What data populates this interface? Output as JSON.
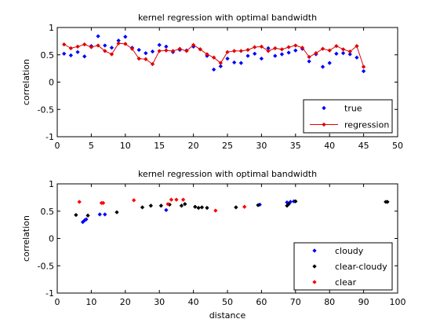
{
  "chart_data": [
    {
      "type": "scatter",
      "title": "kernel regression with optimal bandwidth",
      "xlabel": "",
      "ylabel": "correlation",
      "xlim": [
        0,
        50
      ],
      "ylim": [
        -1,
        1
      ],
      "xticks": [
        0,
        5,
        10,
        15,
        20,
        25,
        30,
        35,
        40,
        45,
        50
      ],
      "yticks": [
        -1,
        -0.5,
        0,
        0.5,
        1
      ],
      "grid": false,
      "legend_position": "bottom-right",
      "series": [
        {
          "name": "true",
          "kind": "points",
          "color": "#0000ff",
          "x": [
            1,
            2,
            3,
            4,
            5,
            6,
            7,
            8,
            9,
            10,
            11,
            12,
            13,
            14,
            15,
            16,
            17,
            18,
            19,
            20,
            21,
            22,
            23,
            24,
            25,
            26,
            27,
            28,
            29,
            30,
            31,
            32,
            33,
            34,
            35,
            36,
            37,
            38,
            39,
            40,
            41,
            42,
            43,
            44,
            45
          ],
          "y": [
            0.52,
            0.49,
            0.55,
            0.47,
            0.66,
            0.84,
            0.67,
            0.63,
            0.76,
            0.83,
            0.63,
            0.59,
            0.53,
            0.56,
            0.68,
            0.65,
            0.55,
            0.59,
            0.58,
            0.65,
            0.6,
            0.48,
            0.23,
            0.29,
            0.43,
            0.36,
            0.35,
            0.48,
            0.52,
            0.43,
            0.62,
            0.48,
            0.51,
            0.54,
            0.58,
            0.61,
            0.38,
            0.51,
            0.28,
            0.35,
            0.52,
            0.53,
            0.51,
            0.45,
            0.2
          ]
        },
        {
          "name": "regression",
          "kind": "line-markers",
          "color": "#e00000",
          "x": [
            1,
            2,
            3,
            4,
            5,
            6,
            7,
            8,
            9,
            10,
            11,
            12,
            13,
            14,
            15,
            16,
            17,
            18,
            19,
            20,
            21,
            22,
            23,
            24,
            25,
            26,
            27,
            28,
            29,
            30,
            31,
            32,
            33,
            34,
            35,
            36,
            37,
            38,
            39,
            40,
            41,
            42,
            43,
            44,
            45
          ],
          "y": [
            0.69,
            0.62,
            0.65,
            0.69,
            0.64,
            0.67,
            0.57,
            0.51,
            0.71,
            0.7,
            0.61,
            0.43,
            0.42,
            0.33,
            0.57,
            0.58,
            0.57,
            0.61,
            0.57,
            0.68,
            0.6,
            0.51,
            0.45,
            0.35,
            0.55,
            0.57,
            0.57,
            0.59,
            0.64,
            0.65,
            0.57,
            0.62,
            0.6,
            0.64,
            0.67,
            0.63,
            0.46,
            0.53,
            0.61,
            0.58,
            0.66,
            0.6,
            0.56,
            0.66,
            0.28
          ]
        }
      ]
    },
    {
      "type": "scatter",
      "title": "kernel regression with optimal bandwidth",
      "xlabel": "distance",
      "ylabel": "correlation",
      "xlim": [
        0,
        100
      ],
      "ylim": [
        -1,
        1
      ],
      "xticks": [
        0,
        10,
        20,
        30,
        40,
        50,
        60,
        70,
        80,
        90,
        100
      ],
      "yticks": [
        -1,
        -0.5,
        0,
        0.5,
        1
      ],
      "grid": false,
      "legend_position": "bottom-right",
      "series": [
        {
          "name": "cloudy",
          "kind": "points",
          "color": "#0000ff",
          "x": [
            7.5,
            8.0,
            8.5,
            12.5,
            14.0,
            32.0,
            59.5,
            67.5,
            68.5,
            69.5
          ],
          "y": [
            0.3,
            0.33,
            0.35,
            0.44,
            0.44,
            0.52,
            0.62,
            0.66,
            0.67,
            0.68
          ]
        },
        {
          "name": "clear-cloudy",
          "kind": "points",
          "color": "#000000",
          "x": [
            5.5,
            9.0,
            17.5,
            25.0,
            27.5,
            30.5,
            33.0,
            36.5,
            37.5,
            40.5,
            41.5,
            42.5,
            44.0,
            52.5,
            59.0,
            67.5,
            68.0,
            70.0,
            96.5,
            97.0
          ],
          "y": [
            0.43,
            0.42,
            0.48,
            0.57,
            0.6,
            0.6,
            0.62,
            0.6,
            0.63,
            0.58,
            0.56,
            0.57,
            0.56,
            0.57,
            0.61,
            0.6,
            0.63,
            0.68,
            0.67,
            0.67
          ]
        },
        {
          "name": "clear",
          "kind": "points",
          "color": "#ff0000",
          "x": [
            6.5,
            13.0,
            13.5,
            22.5,
            32.5,
            33.5,
            35.0,
            37.0,
            46.5,
            55.0
          ],
          "y": [
            0.67,
            0.65,
            0.65,
            0.7,
            0.63,
            0.71,
            0.71,
            0.71,
            0.51,
            0.58
          ]
        }
      ]
    }
  ]
}
